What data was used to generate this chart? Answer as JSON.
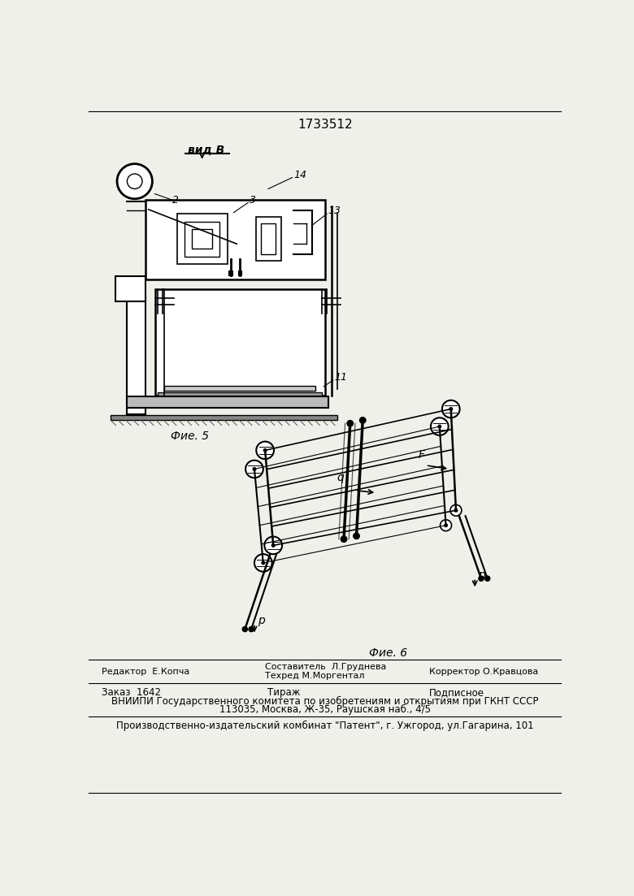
{
  "title": "1733512",
  "bg_color": "#f0f0eb",
  "fig5_label": "вид В",
  "fig5_caption": "Фие. 5",
  "fig6_caption": "Фие. 6",
  "editor_line": "Редактор  Е.Копча",
  "composer_line1": "Составитель  Л.Груднева",
  "composer_line2": "Техред М.Моргентал",
  "corrector_line": "Корректор О.Кравцова",
  "order_text": "Заказ  1642",
  "tirazh_text": "Тираж",
  "podpisnoe_text": "Подписное",
  "vniiipi_line": "ВНИИПИ Государственного комитета по изобретениям и открытиям при ГКНТ СССР",
  "address_line": "113035, Москва, Ж-35, Раушская наб., 4/5",
  "factory_line": "Производственно-издательский комбинат \"Патент\", г. Ужгород, ул.Гагарина, 101"
}
